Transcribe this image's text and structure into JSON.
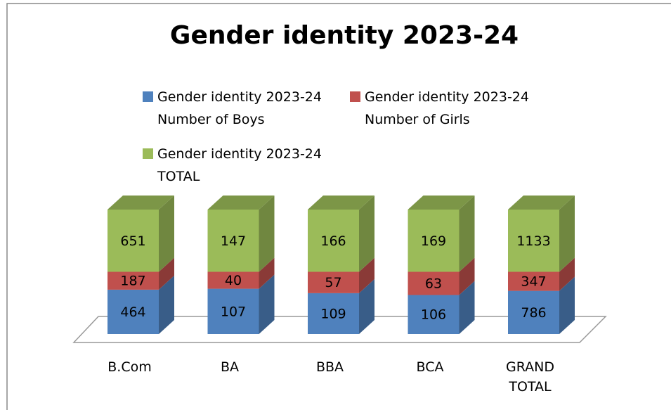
{
  "chart_data": {
    "type": "bar",
    "stacking": "percent",
    "title": "Gender identity 2023-24",
    "categories": [
      "B.Com",
      "BA",
      "BBA",
      "BCA",
      "GRAND TOTAL"
    ],
    "series": [
      {
        "name": "Gender identity 2023-24 Number of Boys",
        "color": "#4f81bd",
        "values": [
          464,
          107,
          109,
          106,
          786
        ]
      },
      {
        "name": "Gender identity 2023-24 Number of Girls",
        "color": "#c0504d",
        "values": [
          187,
          40,
          57,
          63,
          347
        ]
      },
      {
        "name": "Gender identity 2023-24 TOTAL",
        "color": "#9bbb59",
        "values": [
          651,
          147,
          166,
          169,
          1133
        ]
      }
    ]
  }
}
